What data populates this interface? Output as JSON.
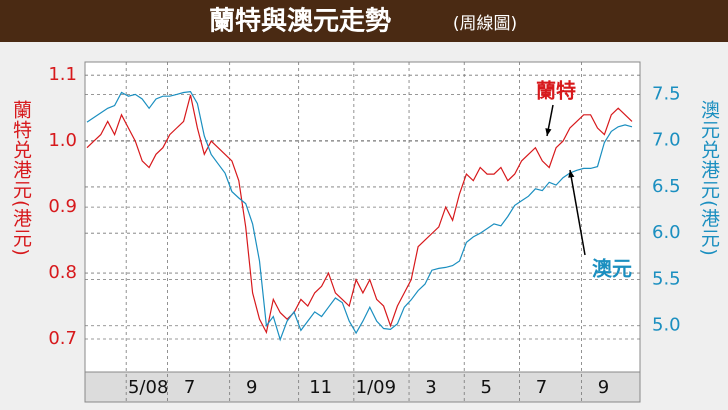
{
  "chart_data": {
    "type": "line",
    "title": "蘭特與澳元走勢",
    "subtitle": "(周線圖)",
    "y_label": "蘭特兑港元(港元)",
    "y2_label": "澳元兑港元(港元)",
    "categories": [
      null,
      null,
      null,
      null,
      null,
      null,
      null,
      null,
      "5/08",
      null,
      null,
      null,
      null,
      null,
      "7",
      null,
      null,
      null,
      null,
      null,
      null,
      null,
      null,
      "9",
      null,
      null,
      null,
      null,
      null,
      null,
      null,
      null,
      null,
      "11",
      null,
      null,
      null,
      null,
      null,
      null,
      null,
      "1/09",
      null,
      null,
      null,
      null,
      null,
      null,
      null,
      "3",
      null,
      null,
      null,
      null,
      null,
      null,
      null,
      "5",
      null,
      null,
      null,
      null,
      null,
      null,
      null,
      "7",
      null,
      null,
      null,
      null,
      null,
      null,
      null,
      null,
      "9",
      null,
      null,
      null,
      null,
      null
    ],
    "series": [
      {
        "name": "蘭特",
        "color": "#d7191c",
        "axis": "y",
        "values": [
          0.99,
          1.0,
          1.01,
          1.03,
          1.01,
          1.04,
          1.02,
          1.0,
          0.97,
          0.96,
          0.98,
          0.99,
          1.01,
          1.02,
          1.03,
          1.07,
          1.02,
          0.98,
          1.0,
          0.99,
          0.98,
          0.97,
          0.94,
          0.87,
          0.77,
          0.73,
          0.71,
          0.76,
          0.74,
          0.73,
          0.74,
          0.76,
          0.75,
          0.77,
          0.78,
          0.8,
          0.77,
          0.76,
          0.75,
          0.79,
          0.77,
          0.79,
          0.76,
          0.75,
          0.72,
          0.75,
          0.77,
          0.79,
          0.84,
          0.85,
          0.86,
          0.87,
          0.9,
          0.88,
          0.92,
          0.95,
          0.94,
          0.96,
          0.95,
          0.95,
          0.96,
          0.94,
          0.95,
          0.97,
          0.98,
          0.99,
          0.97,
          0.96,
          0.99,
          1.0,
          1.02,
          1.03,
          1.04,
          1.04,
          1.02,
          1.01,
          1.04,
          1.05,
          1.04,
          1.03
        ]
      },
      {
        "name": "澳元",
        "color": "#1b8fc0",
        "axis": "y2",
        "values": [
          7.2,
          7.25,
          7.3,
          7.35,
          7.38,
          7.52,
          7.48,
          7.5,
          7.45,
          7.35,
          7.45,
          7.48,
          7.48,
          7.5,
          7.52,
          7.53,
          7.4,
          7.05,
          6.85,
          6.75,
          6.65,
          6.45,
          6.38,
          6.32,
          6.1,
          5.7,
          5.0,
          5.1,
          4.85,
          5.05,
          5.15,
          4.95,
          5.05,
          5.15,
          5.1,
          5.2,
          5.3,
          5.25,
          5.05,
          4.92,
          5.05,
          5.2,
          5.05,
          4.97,
          4.96,
          5.02,
          5.2,
          5.28,
          5.38,
          5.45,
          5.6,
          5.62,
          5.63,
          5.65,
          5.7,
          5.9,
          5.96,
          6.0,
          6.05,
          6.1,
          6.08,
          6.18,
          6.3,
          6.35,
          6.4,
          6.48,
          6.46,
          6.55,
          6.52,
          6.6,
          6.65,
          6.68,
          6.7,
          6.7,
          6.72,
          6.98,
          7.1,
          7.15,
          7.17,
          7.15
        ]
      }
    ],
    "ylim": [
      0.65,
      1.12
    ],
    "yticks": [
      0.7,
      0.8,
      0.9,
      {
        "value": 1,
        "label": "1.0"
      },
      1.1
    ],
    "y2lim": [
      4.5,
      7.85
    ],
    "y2ticks": [
      {
        "value": 5,
        "label": "5.0"
      },
      5.5,
      {
        "value": 6,
        "label": "6.0"
      },
      6.5,
      {
        "value": 7,
        "label": "7.0"
      },
      7.5
    ],
    "grid": true
  }
}
